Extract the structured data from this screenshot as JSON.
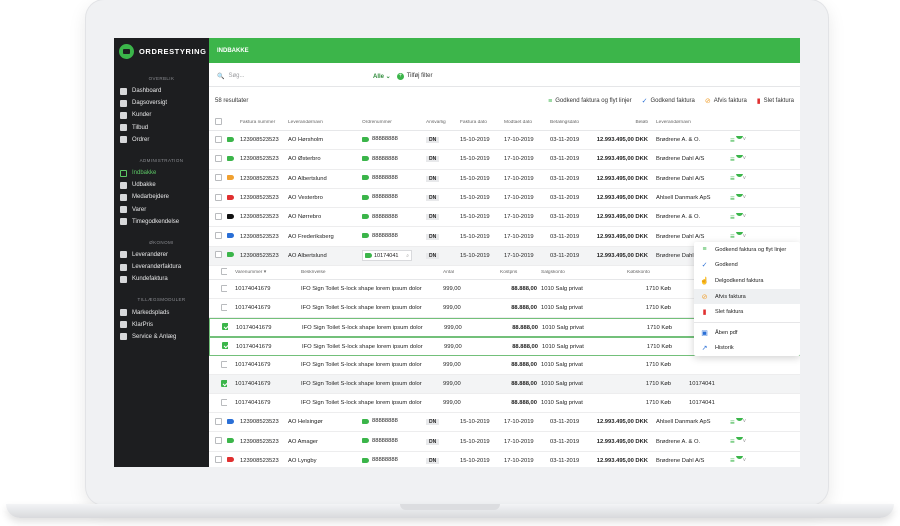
{
  "sidebar": {
    "brand": "ORDRESTYRING",
    "sections": {
      "overview": "OVERBLIK",
      "admin": "ADMINISTRATION",
      "economy": "ØKONOMI",
      "addons": "TILLÆGSMODULER"
    },
    "overview_items": [
      "Dashboard",
      "Dagsoversigt",
      "Kunder",
      "Tilbud",
      "Ordrer"
    ],
    "admin_items": [
      "Indbakke",
      "Udbakke",
      "Medarbejdere",
      "Varer",
      "Timegodkendelse"
    ],
    "economy_items": [
      "Leverandører",
      "Leverandørfaktura",
      "Kundefaktura"
    ],
    "addon_items": [
      "Markedsplads",
      "KlarPris",
      "Service & Anlæg"
    ]
  },
  "topbar": {
    "title": "INDBAKKE"
  },
  "search": {
    "placeholder": "Søg...",
    "filter_select": "Alle",
    "add_filter": "Tilføj filter"
  },
  "actionbar": {
    "result_count": "58 resultater",
    "approve_move": "Godkend faktura og flyt linjer",
    "approve": "Godkend faktura",
    "reject": "Afvis faktura",
    "delete": "Slet faktura"
  },
  "table": {
    "headers": [
      "Faktura nummer",
      "Leverandørnavn",
      "Ordrenummer",
      "Ansvarlig",
      "Faktura dato",
      "Modtaet dato",
      "Betalingsdato",
      "Beløb",
      "Leverandørnavn"
    ],
    "rows": [
      {
        "tag": "#3bb54a",
        "num": "123908523523",
        "name": "AO Hørsholm",
        "order": "88888888",
        "resp": "DN",
        "fdate": "15-10-2019",
        "rdate": "17-10-2019",
        "pdate": "03-11-2019",
        "amount": "12.993.495,00 DKK",
        "supplier": "Brødrene A. & O.",
        "n": "99"
      },
      {
        "tag": "#3bb54a",
        "num": "123908523523",
        "name": "AO Østerbro",
        "order": "88888888",
        "resp": "DN",
        "fdate": "15-10-2019",
        "rdate": "17-10-2019",
        "pdate": "03-11-2019",
        "amount": "12.993.495,00 DKK",
        "supplier": "Brødrene Dahl A/S",
        "n": "99"
      },
      {
        "tag": "#f0a030",
        "num": "123908523523",
        "name": "AO Albertslund",
        "order": "88888888",
        "resp": "DN",
        "fdate": "15-10-2019",
        "rdate": "17-10-2019",
        "pdate": "03-11-2019",
        "amount": "12.993.495,00 DKK",
        "supplier": "Brødrene Dahl A/S",
        "n": "99"
      },
      {
        "tag": "#e03030",
        "num": "123908523523",
        "name": "AO Vesterbro",
        "order": "88888888",
        "resp": "DN",
        "fdate": "15-10-2019",
        "rdate": "17-10-2019",
        "pdate": "03-11-2019",
        "amount": "12.993.495,00 DKK",
        "supplier": "Ahlsell Danmark ApS",
        "n": "99"
      },
      {
        "tag": "#111111",
        "num": "123908523523",
        "name": "AO Nørrebro",
        "order": "88888888",
        "resp": "DN",
        "fdate": "15-10-2019",
        "rdate": "17-10-2019",
        "pdate": "03-11-2019",
        "amount": "12.993.495,00 DKK",
        "supplier": "Brødrene A. & O.",
        "n": "99"
      },
      {
        "tag": "#2a6fd6",
        "num": "123908523523",
        "name": "AO Frederiksberg",
        "order": "88888888",
        "resp": "DN",
        "fdate": "15-10-2019",
        "rdate": "17-10-2019",
        "pdate": "03-11-2019",
        "amount": "12.993.495,00 DKK",
        "supplier": "Brødrene Dahl A/S",
        "n": "99"
      }
    ],
    "expanded_row": {
      "tag": "#3bb54a",
      "num": "123908523523",
      "name": "AO Albertslund",
      "order": "10174041",
      "resp": "DN",
      "fdate": "15-10-2019",
      "rdate": "17-10-2019",
      "pdate": "03-11-2019",
      "amount": "12.993.495,00 DKK",
      "supplier": "Brødrene Dahl A/S",
      "n": "3"
    },
    "sub_headers": [
      "Varenummer",
      "Beskrivelse",
      "Antal",
      "Kostpris",
      "Salgskonto",
      "Købskonto"
    ],
    "sub_rows": [
      {
        "checked": false,
        "sku": "10174041679",
        "desc": "IFÖ Sign Toilet S-lock shape lorem ipsum dolor",
        "qty": "999,00",
        "cost": "88.888,00",
        "sales": "1010 Salg privat",
        "buy": "1710 Køb",
        "extra": ""
      },
      {
        "checked": false,
        "sku": "10174041679",
        "desc": "IFÖ Sign Toilet S-lock shape lorem ipsum dolor",
        "qty": "999,00",
        "cost": "88.888,00",
        "sales": "1010 Salg privat",
        "buy": "1710 Køb",
        "extra": ""
      },
      {
        "checked": true,
        "sku": "10174041679",
        "desc": "IFÖ Sign Toilet S-lock shape lorem ipsum dolor",
        "qty": "999,00",
        "cost": "88.888,00",
        "sales": "1010 Salg privat",
        "buy": "1710 Køb",
        "extra": ""
      },
      {
        "checked": true,
        "sku": "10174041679",
        "desc": "IFÖ Sign Toilet S-lock shape lorem ipsum dolor",
        "qty": "999,00",
        "cost": "88.888,00",
        "sales": "1010 Salg privat",
        "buy": "1710 Køb",
        "extra": ""
      },
      {
        "checked": false,
        "sku": "10174041679",
        "desc": "IFÖ Sign Toilet S-lock shape lorem ipsum dolor",
        "qty": "999,00",
        "cost": "88.888,00",
        "sales": "1010 Salg privat",
        "buy": "1710 Køb",
        "extra": ""
      },
      {
        "checked": true,
        "sku": "10174041679",
        "desc": "IFÖ Sign Toilet S-lock shape lorem ipsum dolor",
        "qty": "999,00",
        "cost": "88.888,00",
        "sales": "1010 Salg privat",
        "buy": "1710 Køb",
        "extra": "10174041"
      },
      {
        "checked": false,
        "sku": "10174041679",
        "desc": "IFÖ Sign Toilet S-lock shape lorem ipsum dolor",
        "qty": "999,00",
        "cost": "88.888,00",
        "sales": "1010 Salg privat",
        "buy": "1710 Køb",
        "extra": "10174041"
      }
    ],
    "bottom_rows": [
      {
        "tag": "#2a6fd6",
        "num": "123908523523",
        "name": "AO Helsingør",
        "order": "88888888",
        "resp": "DN",
        "fdate": "15-10-2019",
        "rdate": "17-10-2019",
        "pdate": "03-11-2019",
        "amount": "12.993.495,00 DKK",
        "supplier": "Ahlsell Danmark ApS",
        "n": "99"
      },
      {
        "tag": "#3bb54a",
        "num": "123908523523",
        "name": "AO Amager",
        "order": "88888888",
        "resp": "DN",
        "fdate": "15-10-2019",
        "rdate": "17-10-2019",
        "pdate": "03-11-2019",
        "amount": "12.993.495,00 DKK",
        "supplier": "Brødrene A. & O.",
        "n": "99"
      },
      {
        "tag": "#e03030",
        "num": "123908523523",
        "name": "AO Lyngby",
        "order": "88888888",
        "resp": "DN",
        "fdate": "15-10-2019",
        "rdate": "17-10-2019",
        "pdate": "03-11-2019",
        "amount": "12.993.495,00 DKK",
        "supplier": "Brødrene Dahl A/S",
        "n": "99"
      }
    ]
  },
  "dropdown": {
    "items": [
      "Godkend faktura og flyt linjer",
      "Godkend",
      "Delgodkend faktura",
      "Afvis faktura",
      "Slet faktura",
      "Åben pdf",
      "Historik"
    ]
  },
  "colors": {
    "brand_green": "#3bb54a",
    "sidebar_bg": "#1d1e20"
  }
}
